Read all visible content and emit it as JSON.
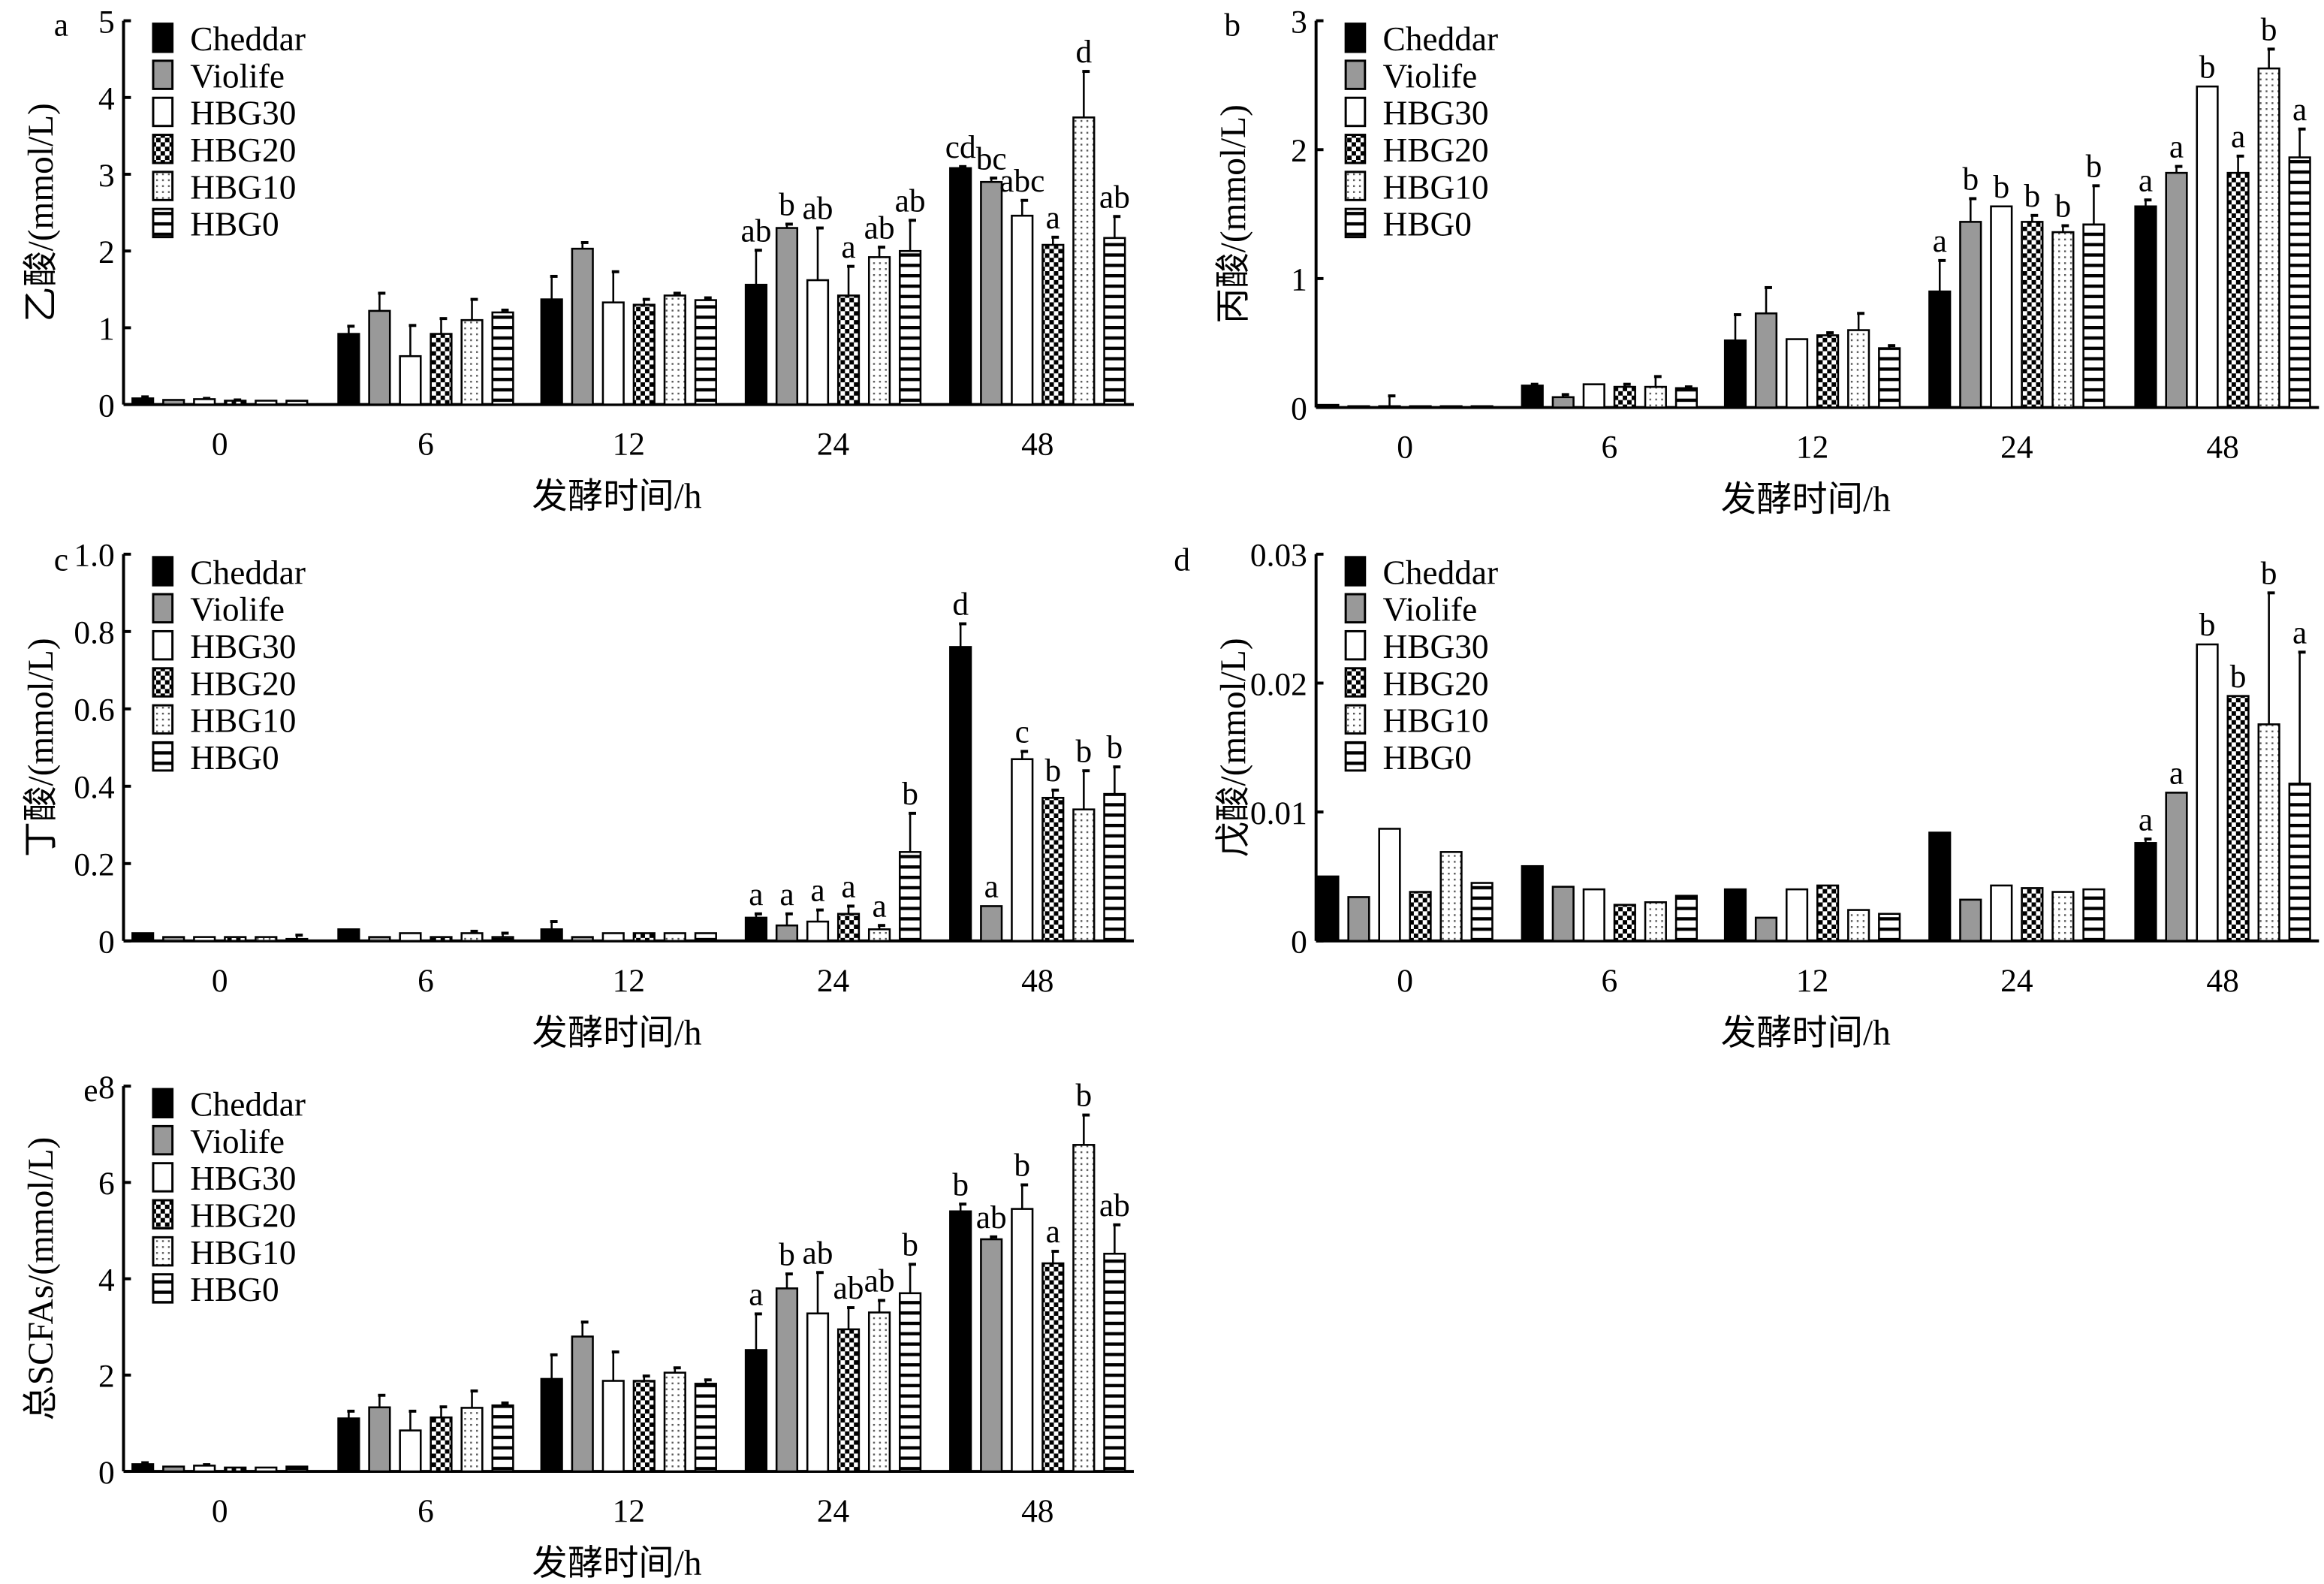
{
  "legend": [
    "Cheddar",
    "Violife",
    "HBG30",
    "HBG20",
    "HBG10",
    "HBG0"
  ],
  "colors": {
    "Cheddar": "#000000",
    "Violife": "#999999",
    "bar_outline": "#000000"
  },
  "chart_data": [
    {
      "type": "bar",
      "panel": "a",
      "ylabel": "乙酸/(mmol/L)",
      "xlabel": "发酵时间/h",
      "categories": [
        "0",
        "6",
        "12",
        "24",
        "48"
      ],
      "ylim": [
        0,
        5
      ],
      "yticks": [
        "0",
        "1",
        "2",
        "3",
        "4",
        "5"
      ],
      "ytick_values": [
        0,
        1,
        2,
        3,
        4,
        5
      ],
      "series": [
        {
          "name": "Cheddar",
          "values": [
            0.08,
            0.92,
            1.37,
            1.56,
            3.08
          ],
          "errors": [
            0.02,
            0.1,
            0.3,
            0.45,
            0.02
          ],
          "letters": [
            "",
            "",
            "",
            "ab",
            "cd"
          ]
        },
        {
          "name": "Violife",
          "values": [
            0.06,
            1.22,
            2.03,
            2.3,
            2.9
          ],
          "errors": [
            0,
            0.23,
            0.08,
            0.05,
            0.05
          ],
          "letters": [
            "",
            "",
            "",
            "b",
            "bc"
          ]
        },
        {
          "name": "HBG30",
          "values": [
            0.07,
            0.63,
            1.33,
            1.62,
            2.46
          ],
          "errors": [
            0.01,
            0.4,
            0.4,
            0.68,
            0.2
          ],
          "letters": [
            "",
            "",
            "",
            "ab",
            "abc"
          ]
        },
        {
          "name": "HBG20",
          "values": [
            0.05,
            0.92,
            1.3,
            1.42,
            2.08
          ],
          "errors": [
            0.01,
            0.2,
            0.07,
            0.38,
            0.1
          ],
          "letters": [
            "",
            "",
            "",
            "a",
            "a"
          ]
        },
        {
          "name": "HBG10",
          "values": [
            0.05,
            1.1,
            1.42,
            1.92,
            3.74
          ],
          "errors": [
            0,
            0.27,
            0.03,
            0.13,
            0.6
          ],
          "letters": [
            "",
            "",
            "",
            "ab",
            "d"
          ]
        },
        {
          "name": "HBG0",
          "values": [
            0.05,
            1.2,
            1.36,
            2.0,
            2.17
          ],
          "errors": [
            0,
            0.03,
            0.03,
            0.4,
            0.28
          ],
          "letters": [
            "",
            "",
            "",
            "ab",
            "ab"
          ]
        }
      ]
    },
    {
      "type": "bar",
      "panel": "b",
      "ylabel": "丙酸/(mmol/L)",
      "xlabel": "发酵时间/h",
      "categories": [
        "0",
        "6",
        "12",
        "24",
        "48"
      ],
      "ylim": [
        0,
        3
      ],
      "yticks": [
        "0",
        "1",
        "2",
        "3"
      ],
      "ytick_values": [
        0,
        1,
        2,
        3
      ],
      "series": [
        {
          "name": "Cheddar",
          "values": [
            0.02,
            0.17,
            0.52,
            0.9,
            1.56
          ],
          "errors": [
            0,
            0.01,
            0.2,
            0.24,
            0.05
          ],
          "letters": [
            "",
            "",
            "",
            "a",
            "a"
          ]
        },
        {
          "name": "Violife",
          "values": [
            0.01,
            0.08,
            0.73,
            1.44,
            1.82
          ],
          "errors": [
            0,
            0.02,
            0.2,
            0.18,
            0.05
          ],
          "letters": [
            "",
            "",
            "",
            "b",
            "a"
          ]
        },
        {
          "name": "HBG30",
          "values": [
            0.01,
            0.18,
            0.53,
            1.56,
            2.49
          ],
          "errors": [
            0.08,
            0,
            0,
            0,
            0
          ],
          "letters": [
            "",
            "",
            "",
            "b",
            "b"
          ]
        },
        {
          "name": "HBG20",
          "values": [
            0.01,
            0.16,
            0.56,
            1.44,
            1.82
          ],
          "errors": [
            0,
            0.02,
            0.02,
            0.05,
            0.13
          ],
          "letters": [
            "",
            "",
            "",
            "b",
            "a"
          ]
        },
        {
          "name": "HBG10",
          "values": [
            0.01,
            0.16,
            0.6,
            1.36,
            2.63
          ],
          "errors": [
            0,
            0.08,
            0.13,
            0.05,
            0.15
          ],
          "letters": [
            "",
            "",
            "",
            "b",
            "b"
          ]
        },
        {
          "name": "HBG0",
          "values": [
            0.01,
            0.15,
            0.46,
            1.42,
            1.94
          ],
          "errors": [
            0,
            0.01,
            0.02,
            0.3,
            0.22
          ],
          "letters": [
            "",
            "",
            "",
            "b",
            "a"
          ]
        }
      ]
    },
    {
      "type": "bar",
      "panel": "c",
      "ylabel": "丁酸/(mmol/L)",
      "xlabel": "发酵时间/h",
      "categories": [
        "0",
        "6",
        "12",
        "24",
        "48"
      ],
      "ylim": [
        0,
        1
      ],
      "yticks": [
        "0",
        "0.2",
        "0.4",
        "0.6",
        "0.8",
        "1.0"
      ],
      "ytick_values": [
        0,
        0.2,
        0.4,
        0.6,
        0.8,
        1.0
      ],
      "series": [
        {
          "name": "Cheddar",
          "values": [
            0.02,
            0.03,
            0.03,
            0.06,
            0.76
          ],
          "errors": [
            0,
            0,
            0.02,
            0.01,
            0.06
          ],
          "letters": [
            "",
            "",
            "",
            "a",
            "d"
          ]
        },
        {
          "name": "Violife",
          "values": [
            0.01,
            0.01,
            0.01,
            0.04,
            0.09
          ],
          "errors": [
            0,
            0,
            0,
            0.03,
            0
          ],
          "letters": [
            "",
            "",
            "",
            "a",
            "a"
          ]
        },
        {
          "name": "HBG30",
          "values": [
            0.01,
            0.02,
            0.02,
            0.05,
            0.47
          ],
          "errors": [
            0,
            0,
            0,
            0.03,
            0.02
          ],
          "letters": [
            "",
            "",
            "",
            "a",
            "c"
          ]
        },
        {
          "name": "HBG20",
          "values": [
            0.01,
            0.01,
            0.02,
            0.07,
            0.37
          ],
          "errors": [
            0,
            0,
            0,
            0.02,
            0.02
          ],
          "letters": [
            "",
            "",
            "",
            "a",
            "b"
          ]
        },
        {
          "name": "HBG10",
          "values": [
            0.01,
            0.02,
            0.02,
            0.03,
            0.34
          ],
          "errors": [
            0,
            0.005,
            0,
            0.01,
            0.1
          ],
          "letters": [
            "",
            "",
            "",
            "a",
            "b"
          ]
        },
        {
          "name": "HBG0",
          "values": [
            0.005,
            0.01,
            0.02,
            0.23,
            0.38
          ],
          "errors": [
            0.01,
            0.01,
            0,
            0.1,
            0.07
          ],
          "letters": [
            "",
            "",
            "",
            "b",
            "b"
          ]
        }
      ]
    },
    {
      "type": "bar",
      "panel": "d",
      "ylabel": "戊酸/(mmol/L)",
      "xlabel": "发酵时间/h",
      "categories": [
        "0",
        "6",
        "12",
        "24",
        "48"
      ],
      "ylim": [
        0,
        0.03
      ],
      "yticks": [
        "0",
        "0.01",
        "0.02",
        "0.03"
      ],
      "ytick_values": [
        0,
        0.01,
        0.02,
        0.03
      ],
      "series": [
        {
          "name": "Cheddar",
          "values": [
            0.005,
            0.0058,
            0.004,
            0.0084,
            0.0076
          ],
          "errors": [
            0,
            0,
            0,
            0,
            0.0003
          ],
          "letters": [
            "",
            "",
            "",
            "",
            "a"
          ]
        },
        {
          "name": "Violife",
          "values": [
            0.0034,
            0.0042,
            0.0018,
            0.0032,
            0.0115
          ],
          "errors": [
            0,
            0,
            0,
            0,
            0
          ],
          "letters": [
            "",
            "",
            "",
            "",
            "a"
          ]
        },
        {
          "name": "HBG30",
          "values": [
            0.0087,
            0.004,
            0.004,
            0.0043,
            0.023
          ],
          "errors": [
            0,
            0,
            0,
            0,
            0
          ],
          "letters": [
            "",
            "",
            "",
            "",
            "b"
          ]
        },
        {
          "name": "HBG20",
          "values": [
            0.0038,
            0.0028,
            0.0043,
            0.0041,
            0.019
          ],
          "errors": [
            0,
            0,
            0,
            0,
            0
          ],
          "letters": [
            "",
            "",
            "",
            "",
            "b"
          ]
        },
        {
          "name": "HBG10",
          "values": [
            0.0069,
            0.003,
            0.0024,
            0.0038,
            0.0168
          ],
          "errors": [
            0,
            0,
            0,
            0,
            0.0102
          ],
          "letters": [
            "",
            "",
            "",
            "",
            "b"
          ]
        },
        {
          "name": "HBG0",
          "values": [
            0.0045,
            0.0035,
            0.0021,
            0.004,
            0.0122
          ],
          "errors": [
            0,
            0,
            0,
            0,
            0.0102
          ],
          "letters": [
            "",
            "",
            "",
            "",
            "a"
          ]
        }
      ]
    },
    {
      "type": "bar",
      "panel": "e",
      "ylabel": "总SCFAs/(mmol/L)",
      "xlabel": "发酵时间/h",
      "categories": [
        "0",
        "6",
        "12",
        "24",
        "48"
      ],
      "ylim": [
        0,
        8
      ],
      "yticks": [
        "0",
        "2",
        "4",
        "6",
        "8"
      ],
      "ytick_values": [
        0,
        2,
        4,
        6,
        8
      ],
      "series": [
        {
          "name": "Cheddar",
          "values": [
            0.15,
            1.1,
            1.92,
            2.52,
            5.4
          ],
          "errors": [
            0.03,
            0.15,
            0.5,
            0.75,
            0.15
          ],
          "letters": [
            "",
            "",
            "",
            "a",
            "b"
          ]
        },
        {
          "name": "Violife",
          "values": [
            0.1,
            1.33,
            2.8,
            3.8,
            4.82
          ],
          "errors": [
            0,
            0.25,
            0.3,
            0.3,
            0.05
          ],
          "letters": [
            "",
            "",
            "",
            "b",
            "ab"
          ]
        },
        {
          "name": "HBG30",
          "values": [
            0.12,
            0.85,
            1.88,
            3.28,
            5.45
          ],
          "errors": [
            0.02,
            0.4,
            0.6,
            0.85,
            0.5
          ],
          "letters": [
            "",
            "",
            "",
            "ab",
            "b"
          ]
        },
        {
          "name": "HBG20",
          "values": [
            0.08,
            1.12,
            1.88,
            2.95,
            4.32
          ],
          "errors": [
            0,
            0.22,
            0.1,
            0.45,
            0.25
          ],
          "letters": [
            "",
            "",
            "",
            "ab",
            "a"
          ]
        },
        {
          "name": "HBG10",
          "values": [
            0.08,
            1.32,
            2.05,
            3.3,
            6.78
          ],
          "errors": [
            0,
            0.35,
            0.1,
            0.25,
            0.62
          ],
          "letters": [
            "",
            "",
            "",
            "ab",
            "b"
          ]
        },
        {
          "name": "HBG0",
          "values": [
            0.1,
            1.37,
            1.82,
            3.7,
            4.52
          ],
          "errors": [
            0,
            0.05,
            0.08,
            0.6,
            0.6
          ],
          "letters": [
            "",
            "",
            "",
            "b",
            "ab"
          ]
        }
      ]
    }
  ]
}
